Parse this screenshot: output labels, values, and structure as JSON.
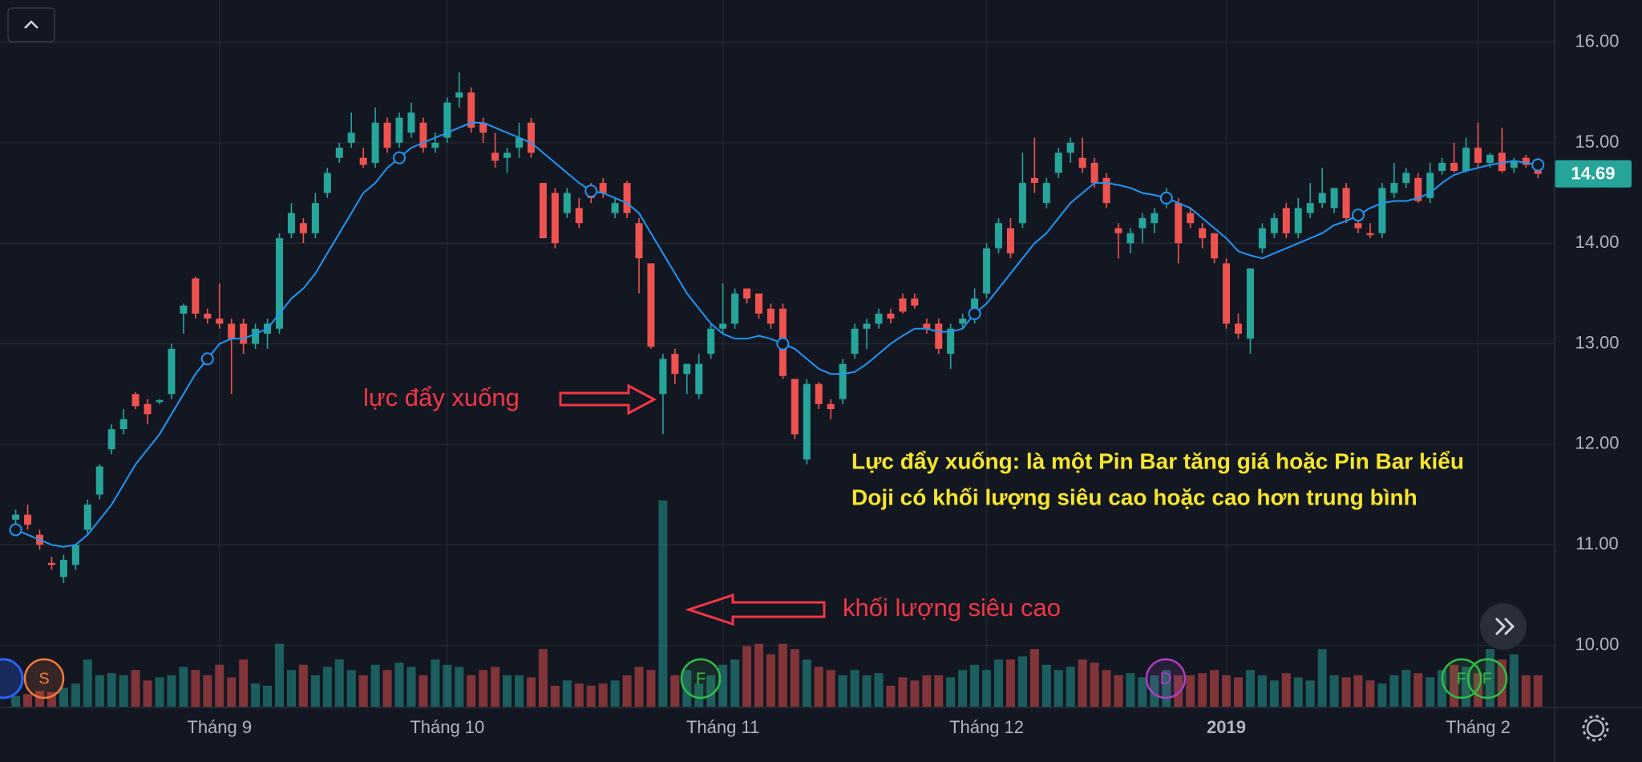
{
  "chart_data": {
    "type": "candlestick",
    "ylim": [
      9.39,
      16.42
    ],
    "yticks": [
      {
        "value": 10,
        "label": "10.00"
      },
      {
        "value": 11,
        "label": "11.00"
      },
      {
        "value": 12,
        "label": "12.00"
      },
      {
        "value": 13,
        "label": "13.00"
      },
      {
        "value": 14,
        "label": "14.00"
      },
      {
        "value": 15,
        "label": "15.00"
      },
      {
        "value": 16,
        "label": "16.00"
      }
    ],
    "xticks": [
      {
        "value": 17,
        "label": "Tháng 9"
      },
      {
        "value": 36,
        "label": "Tháng 10"
      },
      {
        "value": 59,
        "label": "Tháng 11"
      },
      {
        "value": 81,
        "label": "Tháng 12"
      },
      {
        "value": 101,
        "label": "2019"
      },
      {
        "value": 122,
        "label": "Tháng 2"
      }
    ],
    "grid": true,
    "up_color": "#26a69a",
    "down_color": "#ef5350",
    "ma_color": "#2196f3",
    "volume_up_color": "rgba(38,166,154,0.5)",
    "volume_down_color": "rgba(239,83,80,0.5)",
    "volume_lim": [
      0,
      675
    ],
    "last_price": 14.69,
    "ohlc": [
      [
        11.25,
        11.35,
        11.2,
        11.3
      ],
      [
        11.3,
        11.4,
        11.15,
        11.2
      ],
      [
        11.1,
        11.15,
        10.95,
        11.0
      ],
      [
        10.82,
        10.88,
        10.75,
        10.8
      ],
      [
        10.68,
        10.9,
        10.62,
        10.85
      ],
      [
        10.8,
        11.0,
        10.75,
        11.0
      ],
      [
        11.15,
        11.45,
        11.1,
        11.4
      ],
      [
        11.5,
        11.8,
        11.45,
        11.78
      ],
      [
        11.95,
        12.2,
        11.9,
        12.15
      ],
      [
        12.15,
        12.35,
        12.1,
        12.25
      ],
      [
        12.5,
        12.52,
        12.35,
        12.38
      ],
      [
        12.4,
        12.45,
        12.2,
        12.3
      ],
      [
        12.42,
        12.45,
        12.4,
        12.44
      ],
      [
        12.5,
        13.0,
        12.45,
        12.95
      ],
      [
        13.3,
        13.4,
        13.1,
        13.38
      ],
      [
        13.65,
        13.67,
        13.25,
        13.3
      ],
      [
        13.3,
        13.35,
        13.2,
        13.25
      ],
      [
        13.25,
        13.6,
        13.15,
        13.2
      ],
      [
        13.2,
        13.25,
        12.5,
        13.05
      ],
      [
        13.2,
        13.25,
        12.9,
        13.0
      ],
      [
        13.0,
        13.2,
        12.95,
        13.15
      ],
      [
        13.1,
        13.25,
        12.95,
        13.2
      ],
      [
        13.15,
        14.1,
        13.1,
        14.05
      ],
      [
        14.1,
        14.4,
        14.05,
        14.3
      ],
      [
        14.2,
        14.25,
        14.0,
        14.1
      ],
      [
        14.1,
        14.5,
        14.05,
        14.4
      ],
      [
        14.5,
        14.75,
        14.45,
        14.7
      ],
      [
        14.85,
        15.0,
        14.8,
        14.95
      ],
      [
        15.0,
        15.3,
        14.95,
        15.1
      ],
      [
        14.85,
        14.95,
        14.75,
        14.78
      ],
      [
        14.8,
        15.35,
        14.75,
        15.2
      ],
      [
        15.2,
        15.25,
        14.9,
        14.95
      ],
      [
        15.0,
        15.3,
        14.95,
        15.25
      ],
      [
        15.1,
        15.4,
        15.05,
        15.3
      ],
      [
        15.2,
        15.25,
        14.9,
        14.95
      ],
      [
        14.95,
        15.1,
        14.9,
        15.0
      ],
      [
        15.05,
        15.45,
        15.0,
        15.4
      ],
      [
        15.45,
        15.7,
        15.35,
        15.5
      ],
      [
        15.5,
        15.55,
        15.1,
        15.15
      ],
      [
        15.2,
        15.25,
        15.0,
        15.1
      ],
      [
        14.9,
        15.1,
        14.75,
        14.82
      ],
      [
        14.85,
        14.95,
        14.7,
        14.9
      ],
      [
        14.95,
        15.2,
        14.85,
        15.05
      ],
      [
        15.2,
        15.25,
        14.85,
        14.9
      ],
      [
        14.6,
        14.6,
        14.05,
        14.05
      ],
      [
        14.5,
        14.55,
        13.95,
        14.0
      ],
      [
        14.3,
        14.55,
        14.25,
        14.5
      ],
      [
        14.35,
        14.45,
        14.15,
        14.2
      ],
      [
        14.5,
        14.6,
        14.4,
        14.45
      ],
      [
        14.6,
        14.65,
        14.45,
        14.5
      ],
      [
        14.3,
        14.45,
        14.25,
        14.4
      ],
      [
        14.6,
        14.62,
        14.25,
        14.3
      ],
      [
        14.2,
        14.25,
        13.5,
        13.85
      ],
      [
        13.8,
        13.8,
        12.95,
        12.97
      ],
      [
        12.5,
        12.9,
        12.1,
        12.85
      ],
      [
        12.9,
        12.95,
        12.6,
        12.7
      ],
      [
        12.7,
        12.8,
        12.5,
        12.8
      ],
      [
        12.5,
        12.9,
        12.45,
        12.8
      ],
      [
        12.9,
        13.2,
        12.85,
        13.15
      ],
      [
        13.15,
        13.6,
        13.1,
        13.2
      ],
      [
        13.2,
        13.55,
        13.15,
        13.5
      ],
      [
        13.55,
        13.55,
        13.4,
        13.45
      ],
      [
        13.5,
        13.5,
        13.25,
        13.3
      ],
      [
        13.35,
        13.4,
        13.15,
        13.2
      ],
      [
        13.35,
        13.4,
        12.65,
        12.68
      ],
      [
        12.65,
        12.65,
        12.05,
        12.1
      ],
      [
        11.85,
        12.65,
        11.8,
        12.6
      ],
      [
        12.6,
        12.62,
        12.35,
        12.4
      ],
      [
        12.4,
        12.45,
        12.25,
        12.35
      ],
      [
        12.45,
        12.85,
        12.4,
        12.8
      ],
      [
        12.9,
        13.2,
        12.85,
        13.15
      ],
      [
        13.15,
        13.25,
        12.95,
        13.2
      ],
      [
        13.2,
        13.35,
        13.15,
        13.3
      ],
      [
        13.3,
        13.35,
        13.2,
        13.25
      ],
      [
        13.45,
        13.5,
        13.3,
        13.32
      ],
      [
        13.45,
        13.5,
        13.35,
        13.38
      ],
      [
        13.2,
        13.25,
        13.1,
        13.15
      ],
      [
        13.2,
        13.25,
        12.9,
        12.95
      ],
      [
        12.9,
        13.2,
        12.75,
        13.15
      ],
      [
        13.2,
        13.3,
        13.15,
        13.25
      ],
      [
        13.25,
        13.55,
        13.2,
        13.45
      ],
      [
        13.5,
        14.0,
        13.45,
        13.95
      ],
      [
        13.95,
        14.25,
        13.9,
        14.2
      ],
      [
        14.15,
        14.25,
        13.85,
        13.9
      ],
      [
        14.2,
        14.9,
        14.15,
        14.6
      ],
      [
        14.65,
        15.05,
        14.5,
        14.6
      ],
      [
        14.4,
        14.65,
        14.35,
        14.6
      ],
      [
        14.7,
        14.95,
        14.65,
        14.9
      ],
      [
        14.9,
        15.05,
        14.8,
        15.0
      ],
      [
        14.85,
        15.05,
        14.7,
        14.75
      ],
      [
        14.8,
        14.85,
        14.55,
        14.6
      ],
      [
        14.65,
        14.7,
        14.35,
        14.4
      ],
      [
        14.15,
        14.2,
        13.85,
        14.1
      ],
      [
        14.0,
        14.15,
        13.9,
        14.1
      ],
      [
        14.15,
        14.3,
        14.0,
        14.25
      ],
      [
        14.2,
        14.35,
        14.1,
        14.3
      ],
      [
        14.4,
        14.55,
        14.35,
        14.45
      ],
      [
        14.4,
        14.45,
        13.8,
        14.0
      ],
      [
        14.3,
        14.35,
        14.15,
        14.2
      ],
      [
        14.15,
        14.2,
        13.95,
        14.05
      ],
      [
        14.1,
        14.1,
        13.8,
        13.85
      ],
      [
        13.8,
        13.85,
        13.15,
        13.2
      ],
      [
        13.2,
        13.3,
        13.05,
        13.1
      ],
      [
        13.05,
        13.75,
        12.9,
        13.75
      ],
      [
        13.95,
        14.2,
        13.9,
        14.15
      ],
      [
        14.1,
        14.3,
        14.05,
        14.25
      ],
      [
        14.35,
        14.4,
        14.05,
        14.1
      ],
      [
        14.1,
        14.45,
        14.05,
        14.35
      ],
      [
        14.3,
        14.6,
        14.25,
        14.4
      ],
      [
        14.4,
        14.75,
        14.35,
        14.5
      ],
      [
        14.35,
        14.55,
        14.3,
        14.55
      ],
      [
        14.55,
        14.6,
        14.2,
        14.25
      ],
      [
        14.2,
        14.3,
        14.1,
        14.15
      ],
      [
        14.1,
        14.2,
        14.05,
        14.08
      ],
      [
        14.1,
        14.6,
        14.05,
        14.55
      ],
      [
        14.5,
        14.8,
        14.45,
        14.6
      ],
      [
        14.6,
        14.75,
        14.55,
        14.7
      ],
      [
        14.65,
        14.7,
        14.4,
        14.42
      ],
      [
        14.45,
        14.8,
        14.4,
        14.7
      ],
      [
        14.72,
        14.85,
        14.68,
        14.8
      ],
      [
        14.8,
        15.0,
        14.7,
        14.72
      ],
      [
        14.72,
        15.05,
        14.7,
        14.95
      ],
      [
        14.95,
        15.2,
        14.75,
        14.8
      ],
      [
        14.8,
        14.9,
        14.75,
        14.88
      ],
      [
        14.9,
        15.15,
        14.7,
        14.72
      ],
      [
        14.75,
        14.85,
        14.7,
        14.82
      ],
      [
        14.85,
        14.88,
        14.75,
        14.78
      ],
      [
        14.82,
        14.85,
        14.65,
        14.69
      ]
    ],
    "ma": [
      11.15,
      11.1,
      11.05,
      11.0,
      10.98,
      11.0,
      11.1,
      11.25,
      11.4,
      11.6,
      11.8,
      11.95,
      12.1,
      12.3,
      12.5,
      12.7,
      12.85,
      13.0,
      13.05,
      13.05,
      13.1,
      13.15,
      13.3,
      13.45,
      13.55,
      13.7,
      13.9,
      14.1,
      14.3,
      14.5,
      14.6,
      14.75,
      14.85,
      14.95,
      15.0,
      15.05,
      15.1,
      15.15,
      15.2,
      15.2,
      15.15,
      15.1,
      15.05,
      15.0,
      14.9,
      14.8,
      14.7,
      14.6,
      14.52,
      14.5,
      14.45,
      14.4,
      14.3,
      14.1,
      13.9,
      13.7,
      13.5,
      13.35,
      13.2,
      13.1,
      13.05,
      13.05,
      13.08,
      13.05,
      13.0,
      12.95,
      12.85,
      12.75,
      12.7,
      12.7,
      12.72,
      12.8,
      12.9,
      13.0,
      13.08,
      13.15,
      13.15,
      13.12,
      13.12,
      13.15,
      13.3,
      13.4,
      13.55,
      13.7,
      13.85,
      14.0,
      14.1,
      14.25,
      14.4,
      14.5,
      14.6,
      14.6,
      14.58,
      14.55,
      14.5,
      14.48,
      14.45,
      14.4,
      14.35,
      14.25,
      14.15,
      14.05,
      13.92,
      13.88,
      13.85,
      13.9,
      13.95,
      14.0,
      14.05,
      14.1,
      14.18,
      14.22,
      14.28,
      14.35,
      14.4,
      14.42,
      14.42,
      14.45,
      14.5,
      14.6,
      14.68,
      14.72,
      14.75,
      14.78,
      14.8,
      14.82,
      14.8,
      14.78
    ],
    "volume": [
      10,
      12,
      15,
      14,
      18,
      22,
      45,
      30,
      32,
      30,
      35,
      25,
      28,
      30,
      38,
      35,
      30,
      40,
      28,
      45,
      22,
      20,
      60,
      35,
      40,
      30,
      38,
      45,
      35,
      30,
      40,
      35,
      42,
      38,
      30,
      45,
      40,
      38,
      30,
      35,
      38,
      30,
      30,
      28,
      55,
      20,
      25,
      22,
      20,
      22,
      25,
      30,
      38,
      35,
      197,
      30,
      35,
      22,
      30,
      40,
      45,
      58,
      60,
      50,
      60,
      55,
      45,
      38,
      35,
      30,
      35,
      30,
      32,
      20,
      28,
      25,
      30,
      30,
      28,
      35,
      40,
      35,
      45,
      45,
      48,
      55,
      40,
      35,
      38,
      45,
      42,
      35,
      30,
      32,
      28,
      30,
      35,
      30,
      30,
      32,
      35,
      30,
      28,
      35,
      30,
      25,
      32,
      28,
      25,
      55,
      30,
      28,
      30,
      25,
      22,
      30,
      35,
      32,
      28,
      35,
      40,
      38,
      32,
      55,
      45,
      50,
      30,
      30
    ],
    "annotations": [
      "lực đẩy xuống",
      "khối lượng siêu cao",
      "Lực đẩy xuống: là một Pin Bar tăng giá hoặc Pin Bar kiểu",
      "Doji có khối lượng siêu cao hoặc cao hơn trung bình"
    ],
    "events": [
      "S",
      "F",
      "D",
      "F",
      "F"
    ]
  }
}
